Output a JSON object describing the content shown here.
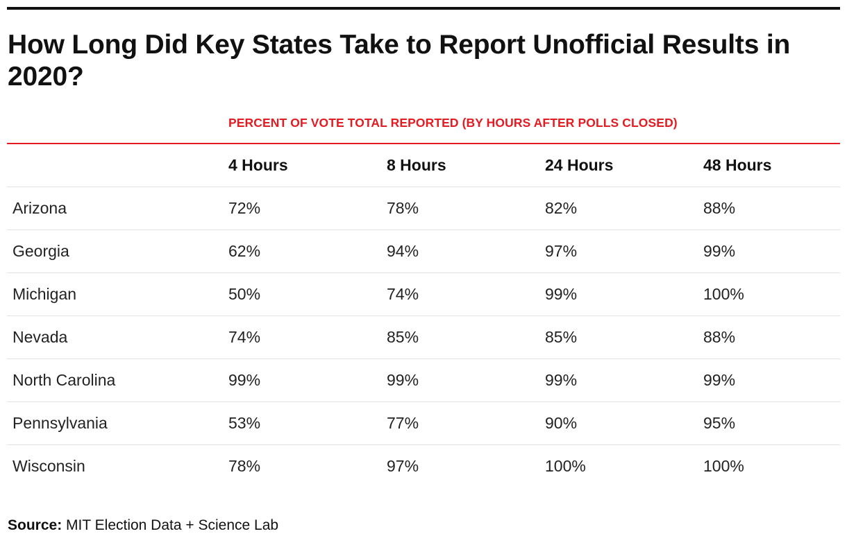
{
  "chart_data": {
    "type": "table",
    "title": "How Long Did Key States Take to Report Unofficial Results in 2020?",
    "group_header": "PERCENT OF VOTE TOTAL REPORTED (BY HOURS AFTER POLLS CLOSED)",
    "row_header_label": "",
    "columns": [
      "4 Hours",
      "8 Hours",
      "24 Hours",
      "48 Hours"
    ],
    "rows": [
      {
        "state": "Arizona",
        "values": [
          "72%",
          "78%",
          "82%",
          "88%"
        ]
      },
      {
        "state": "Georgia",
        "values": [
          "62%",
          "94%",
          "97%",
          "99%"
        ]
      },
      {
        "state": "Michigan",
        "values": [
          "50%",
          "74%",
          "99%",
          "100%"
        ]
      },
      {
        "state": "Nevada",
        "values": [
          "74%",
          "85%",
          "85%",
          "88%"
        ]
      },
      {
        "state": "North Carolina",
        "values": [
          "99%",
          "99%",
          "99%",
          "99%"
        ]
      },
      {
        "state": "Pennsylvania",
        "values": [
          "53%",
          "77%",
          "90%",
          "95%"
        ]
      },
      {
        "state": "Wisconsin",
        "values": [
          "78%",
          "97%",
          "100%",
          "100%"
        ]
      }
    ],
    "source_label": "Source:",
    "source_text": "MIT Election Data + Science Lab"
  },
  "colors": {
    "accent": "#e31b23",
    "text": "#111111",
    "row_divider": "#e3e3e3"
  }
}
